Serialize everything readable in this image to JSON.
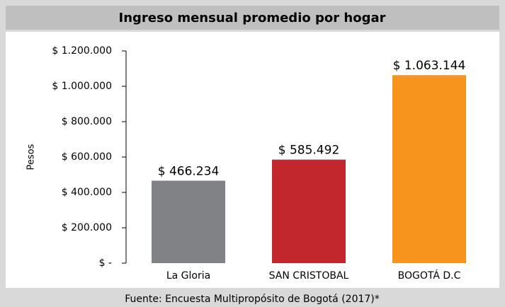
{
  "chart_data": {
    "type": "bar",
    "title": "Ingreso mensual promedio por hogar",
    "y_label": "Pesos",
    "source": "Fuente: Encuesta Multipropósito de Bogotá (2017)*",
    "categories": [
      "La Gloria",
      "SAN CRISTOBAL",
      "BOGOTÁ D.C"
    ],
    "values": [
      466234,
      585492,
      1063144
    ],
    "value_labels": [
      "$ 466.234",
      "$ 585.492",
      "$ 1.063.144"
    ],
    "colors": [
      "#808285",
      "#c1272d",
      "#f7941d"
    ],
    "ylim": [
      0,
      1200000
    ],
    "yticks": [
      {
        "value": 0,
        "label": "$ -"
      },
      {
        "value": 200000,
        "label": "$ 200.000"
      },
      {
        "value": 400000,
        "label": "$ 400.000"
      },
      {
        "value": 600000,
        "label": "$ 600.000"
      },
      {
        "value": 800000,
        "label": "$ 800.000"
      },
      {
        "value": 1000000,
        "label": "$ 1.000.000"
      },
      {
        "value": 1200000,
        "label": "$ 1.200.000"
      }
    ],
    "grid": false
  }
}
